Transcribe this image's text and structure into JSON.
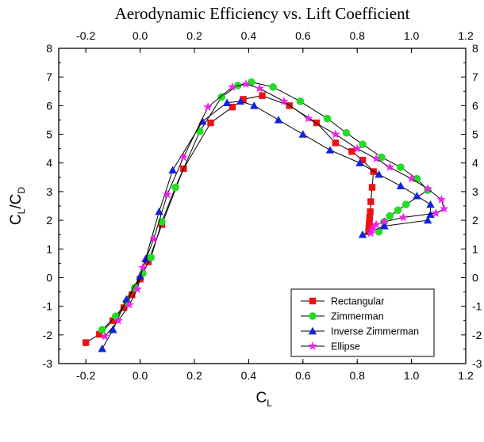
{
  "chart_data": {
    "type": "scatter",
    "title": "Aerodynamic Efficiency vs. Lift Coefficient",
    "xlabel": {
      "main": "C",
      "sub": "L"
    },
    "ylabel": {
      "num_main": "C",
      "num_sub": "L",
      "sep": "/",
      "den_main": "C",
      "den_sub": "D"
    },
    "xlim": [
      -0.3,
      1.2
    ],
    "ylim": [
      -3,
      8
    ],
    "x_ticks_bottom": [
      "-0.2",
      "0.0",
      "0.2",
      "0.4",
      "0.6",
      "0.8",
      "1.0",
      "1.2"
    ],
    "x_ticks_top": [
      "-0.2",
      "0.0",
      "0.2",
      "0.4",
      "0.6",
      "0.8",
      "1.0",
      "1.2"
    ],
    "y_ticks": [
      "-3",
      "-2",
      "-1",
      "0",
      "1",
      "2",
      "3",
      "4",
      "5",
      "6",
      "7",
      "8"
    ],
    "grid": false,
    "legend_position": "lower-right",
    "series": [
      {
        "name": "Rectangular",
        "color": "#ee1111",
        "marker": "square",
        "points": [
          [
            -0.2,
            -2.27
          ],
          [
            -0.15,
            -1.98
          ],
          [
            -0.1,
            -1.5
          ],
          [
            -0.06,
            -1.05
          ],
          [
            -0.03,
            -0.6
          ],
          [
            0.0,
            -0.05
          ],
          [
            0.03,
            0.55
          ],
          [
            0.08,
            1.85
          ],
          [
            0.16,
            3.8
          ],
          [
            0.26,
            5.4
          ],
          [
            0.34,
            5.95
          ],
          [
            0.38,
            6.22
          ],
          [
            0.45,
            6.35
          ],
          [
            0.55,
            6.0
          ],
          [
            0.65,
            5.4
          ],
          [
            0.72,
            4.7
          ],
          [
            0.78,
            4.4
          ],
          [
            0.82,
            4.1
          ],
          [
            0.86,
            3.7
          ],
          [
            0.855,
            3.15
          ],
          [
            0.85,
            2.65
          ],
          [
            0.848,
            2.3
          ],
          [
            0.846,
            2.1
          ],
          [
            0.845,
            1.95
          ],
          [
            0.844,
            1.82
          ],
          [
            0.843,
            1.7
          ],
          [
            0.842,
            1.6
          ]
        ]
      },
      {
        "name": "Zimmerman",
        "color": "#22dd22",
        "marker": "circle",
        "points": [
          [
            -0.14,
            -1.82
          ],
          [
            -0.09,
            -1.35
          ],
          [
            -0.05,
            -0.85
          ],
          [
            -0.02,
            -0.35
          ],
          [
            0.01,
            0.15
          ],
          [
            0.04,
            0.7
          ],
          [
            0.08,
            1.95
          ],
          [
            0.13,
            3.15
          ],
          [
            0.22,
            5.1
          ],
          [
            0.3,
            6.3
          ],
          [
            0.36,
            6.7
          ],
          [
            0.41,
            6.82
          ],
          [
            0.49,
            6.65
          ],
          [
            0.59,
            6.15
          ],
          [
            0.69,
            5.55
          ],
          [
            0.76,
            5.05
          ],
          [
            0.82,
            4.65
          ],
          [
            0.89,
            4.2
          ],
          [
            0.96,
            3.85
          ],
          [
            1.02,
            3.45
          ],
          [
            1.06,
            3.05
          ],
          [
            0.98,
            2.55
          ],
          [
            0.95,
            2.35
          ],
          [
            0.92,
            2.15
          ],
          [
            0.9,
            1.95
          ],
          [
            0.88,
            1.6
          ]
        ]
      },
      {
        "name": "Inverse Zimmerman",
        "color": "#1122dd",
        "marker": "triangle",
        "points": [
          [
            -0.14,
            -2.48
          ],
          [
            -0.1,
            -1.82
          ],
          [
            -0.05,
            -0.75
          ],
          [
            0.0,
            0.05
          ],
          [
            0.02,
            0.65
          ],
          [
            0.07,
            2.3
          ],
          [
            0.12,
            3.75
          ],
          [
            0.23,
            5.45
          ],
          [
            0.32,
            6.1
          ],
          [
            0.37,
            6.15
          ],
          [
            0.42,
            6.0
          ],
          [
            0.51,
            5.5
          ],
          [
            0.6,
            5.0
          ],
          [
            0.7,
            4.45
          ],
          [
            0.81,
            4.0
          ],
          [
            0.88,
            3.6
          ],
          [
            0.96,
            3.2
          ],
          [
            1.02,
            2.85
          ],
          [
            1.07,
            2.55
          ],
          [
            1.07,
            2.2
          ],
          [
            1.06,
            2.0
          ],
          [
            0.9,
            1.8
          ],
          [
            0.82,
            1.5
          ]
        ]
      },
      {
        "name": "Ellipse",
        "color": "#ee22ee",
        "marker": "star",
        "points": [
          [
            -0.13,
            -2.05
          ],
          [
            -0.08,
            -1.5
          ],
          [
            -0.04,
            -0.95
          ],
          [
            -0.01,
            -0.4
          ],
          [
            0.01,
            0.35
          ],
          [
            0.05,
            1.35
          ],
          [
            0.1,
            2.9
          ],
          [
            0.16,
            4.2
          ],
          [
            0.25,
            5.95
          ],
          [
            0.34,
            6.65
          ],
          [
            0.39,
            6.75
          ],
          [
            0.44,
            6.6
          ],
          [
            0.53,
            6.15
          ],
          [
            0.62,
            5.55
          ],
          [
            0.72,
            5.0
          ],
          [
            0.8,
            4.5
          ],
          [
            0.87,
            4.15
          ],
          [
            0.92,
            3.85
          ],
          [
            1.0,
            3.45
          ],
          [
            1.06,
            3.1
          ],
          [
            1.11,
            2.72
          ],
          [
            1.12,
            2.4
          ],
          [
            1.09,
            2.25
          ],
          [
            0.97,
            2.1
          ],
          [
            0.9,
            1.95
          ],
          [
            0.87,
            1.85
          ],
          [
            0.86,
            1.75
          ],
          [
            0.855,
            1.65
          ],
          [
            0.85,
            1.55
          ]
        ]
      }
    ]
  }
}
